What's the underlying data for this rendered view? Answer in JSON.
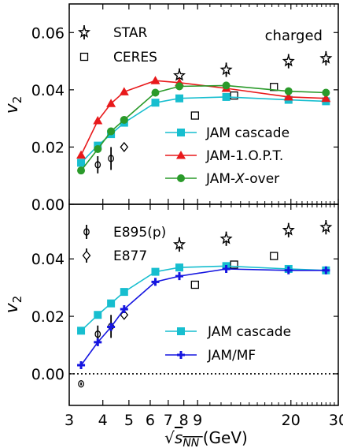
{
  "chart_data": [
    {
      "panel": "top",
      "type": "scatter",
      "ylabel": "v2",
      "ylim": [
        0,
        0.07
      ],
      "yticks": [
        "0.00",
        "0.02",
        "0.04",
        "0.06"
      ],
      "corner_label": "charged",
      "series": [
        {
          "name": "STAR",
          "marker": "star",
          "color": "#000000",
          "x": [
            7.7,
            11.5,
            19.6,
            27
          ],
          "y": [
            0.045,
            0.047,
            0.05,
            0.051
          ],
          "err": [
            0.0025,
            0.0025,
            0.0025,
            0.0025
          ]
        },
        {
          "name": "CERES",
          "marker": "open-square",
          "color": "#000000",
          "x": [
            8.8,
            12.3,
            17.3
          ],
          "y": [
            0.031,
            0.038,
            0.041
          ]
        },
        {
          "name": "",
          "marker": "open-circle",
          "color": "#000000",
          "x": [
            3.83,
            4.29
          ],
          "y": [
            0.0138,
            0.016
          ],
          "err": [
            0.003,
            0.004
          ]
        },
        {
          "name": "",
          "marker": "open-diamond",
          "color": "#000000",
          "x": [
            4.8
          ],
          "y": [
            0.02
          ]
        },
        {
          "name": "JAM cascade",
          "marker": "square",
          "color": "#17becf",
          "x": [
            3.32,
            3.83,
            4.29,
            4.8,
            6.27,
            7.7,
            11.5,
            19.6,
            27
          ],
          "y": [
            0.0145,
            0.0205,
            0.0245,
            0.0285,
            0.0355,
            0.037,
            0.0375,
            0.0365,
            0.036
          ]
        },
        {
          "name": "JAM-1.O.P.T.",
          "marker": "triangle",
          "color": "#e8191b",
          "x": [
            3.32,
            3.83,
            4.29,
            4.8,
            6.27,
            7.7,
            11.5,
            19.6,
            27
          ],
          "y": [
            0.0172,
            0.0292,
            0.0352,
            0.0393,
            0.0432,
            0.0425,
            0.0405,
            0.0375,
            0.037
          ]
        },
        {
          "name": "JAM-X-over",
          "marker": "circle",
          "color": "#2a9a2a",
          "x": [
            3.32,
            3.83,
            4.29,
            4.8,
            6.27,
            7.7,
            11.5,
            19.6,
            27
          ],
          "y": [
            0.0118,
            0.0193,
            0.0255,
            0.0295,
            0.039,
            0.0412,
            0.0415,
            0.0395,
            0.039
          ]
        }
      ],
      "legend": [
        {
          "label": "STAR",
          "marker": "star",
          "color": "#000000"
        },
        {
          "label": "CERES",
          "marker": "open-square",
          "color": "#000000"
        },
        {
          "label": "JAM cascade",
          "marker": "square",
          "color": "#17becf"
        },
        {
          "label": "JAM-1.O.P.T.",
          "marker": "triangle",
          "color": "#e8191b"
        },
        {
          "label": "JAM-X-over",
          "marker": "circle",
          "color": "#2a9a2a"
        }
      ]
    },
    {
      "panel": "bottom",
      "type": "scatter",
      "ylabel": "v2",
      "xlabel": "√sNN (GeV)",
      "xscale": "log",
      "xlim": [
        3,
        30
      ],
      "xticks": [
        "3",
        "4",
        "5",
        "6",
        "7",
        "8",
        "9",
        "20",
        "30"
      ],
      "ylim": [
        -0.011,
        0.059
      ],
      "yticks": [
        "0.00",
        "0.02",
        "0.04"
      ],
      "zero_line": "dotted",
      "series": [
        {
          "name": "STAR",
          "marker": "star",
          "color": "#000000",
          "x": [
            7.7,
            11.5,
            19.6,
            27
          ],
          "y": [
            0.045,
            0.047,
            0.05,
            0.051
          ],
          "err": [
            0.0025,
            0.0025,
            0.0025,
            0.0025
          ]
        },
        {
          "name": "CERES",
          "marker": "open-square",
          "color": "#000000",
          "x": [
            8.8,
            12.3,
            17.3
          ],
          "y": [
            0.031,
            0.038,
            0.041
          ]
        },
        {
          "name": "E895(p)",
          "marker": "open-circle",
          "color": "#000000",
          "x": [
            3.32,
            3.83,
            4.29
          ],
          "y": [
            -0.0035,
            0.0138,
            0.0165
          ],
          "err": [
            0.0005,
            0.003,
            0.004
          ]
        },
        {
          "name": "E877",
          "marker": "open-diamond",
          "color": "#000000",
          "x": [
            4.8
          ],
          "y": [
            0.0205
          ]
        },
        {
          "name": "JAM cascade",
          "marker": "square",
          "color": "#17becf",
          "x": [
            3.32,
            3.83,
            4.29,
            4.8,
            6.27,
            7.7,
            11.5,
            19.6,
            27
          ],
          "y": [
            0.015,
            0.0205,
            0.0245,
            0.0285,
            0.0355,
            0.037,
            0.0375,
            0.0365,
            0.036
          ]
        },
        {
          "name": "JAM/MF",
          "marker": "plus",
          "color": "#1515e0",
          "x": [
            3.32,
            3.83,
            4.29,
            4.8,
            6.27,
            7.7,
            11.5,
            19.6,
            27
          ],
          "y": [
            0.003,
            0.011,
            0.0163,
            0.0225,
            0.032,
            0.034,
            0.0365,
            0.036,
            0.036
          ]
        }
      ],
      "legend": [
        {
          "label": "E895(p)",
          "marker": "open-circle",
          "color": "#000000"
        },
        {
          "label": "E877",
          "marker": "open-diamond",
          "color": "#000000"
        },
        {
          "label": "JAM cascade",
          "marker": "square",
          "color": "#17becf"
        },
        {
          "label": "JAM/MF",
          "marker": "plus",
          "color": "#1515e0"
        }
      ]
    }
  ]
}
